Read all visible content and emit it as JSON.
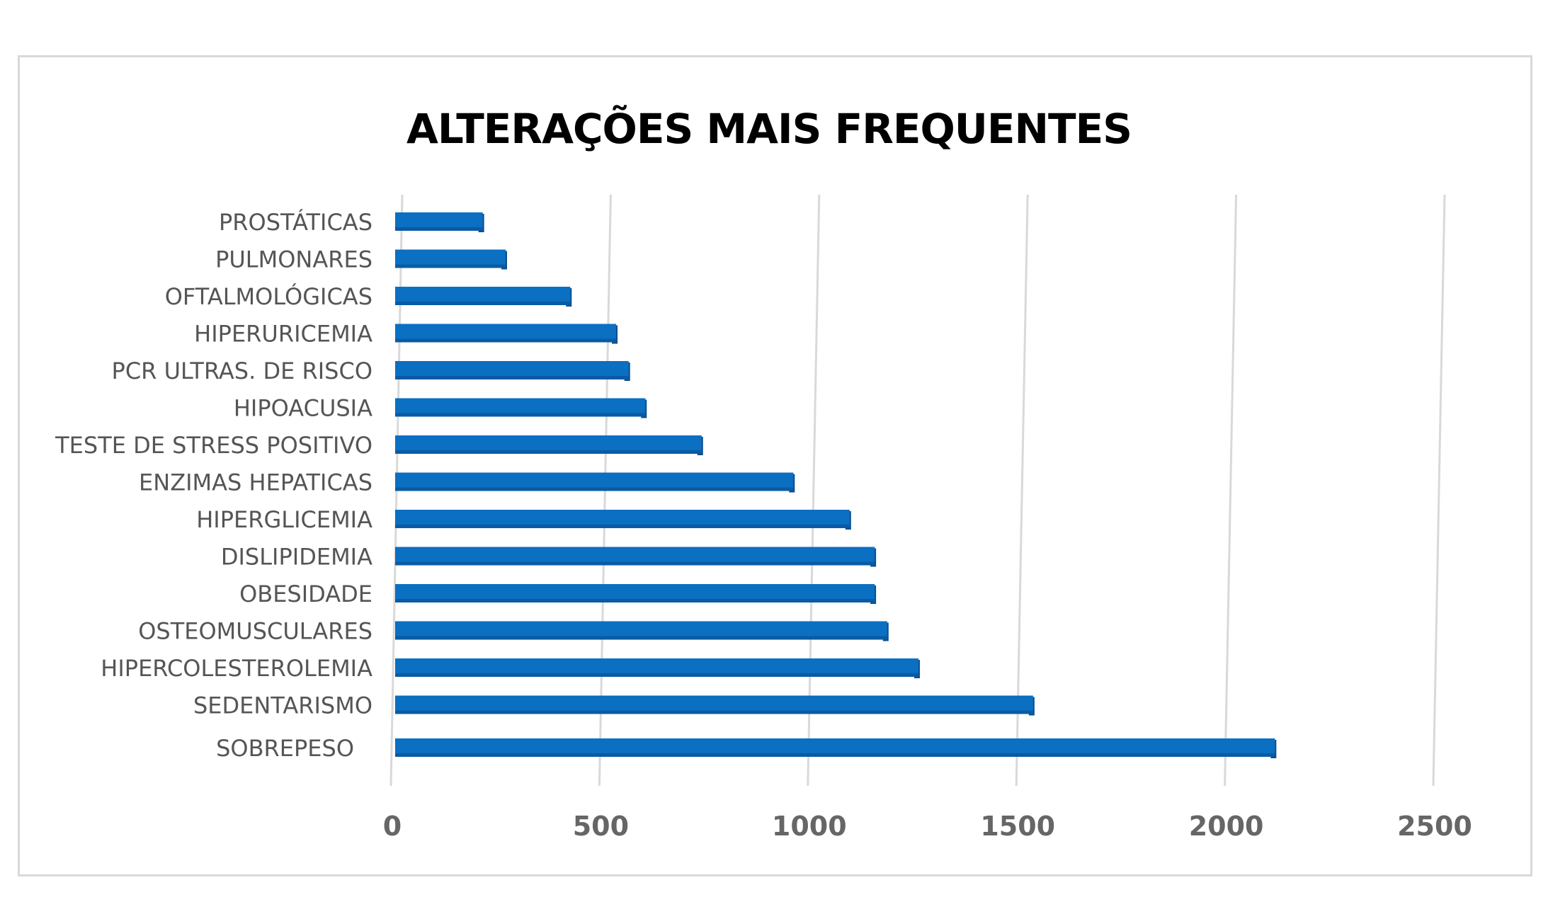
{
  "chart_data": {
    "type": "bar",
    "orientation": "horizontal",
    "title": "ALTERAÇÕES MAIS FREQUENTES",
    "categories": [
      "PROSTÁTICAS",
      "PULMONARES",
      "OFTALMOLÓGICAS",
      "HIPERURICEMIA",
      "PCR ULTRAS. DE RISCO",
      "HIPOACUSIA",
      "TESTE DE STRESS POSITIVO",
      "ENZIMAS HEPATICAS",
      "HIPERGLICEMIA",
      "DISLIPIDEMIA",
      "OBESIDADE",
      "OSTEOMUSCULARES",
      "HIPERCOLESTEROLEMIA",
      "SEDENTARISMO",
      "SOBREPESO"
    ],
    "values": [
      210,
      265,
      420,
      530,
      560,
      600,
      735,
      955,
      1090,
      1150,
      1150,
      1180,
      1255,
      1530,
      2110
    ],
    "xlim": [
      0,
      2500
    ],
    "xticks": [
      "0",
      "500",
      "1000",
      "1500",
      "2000",
      "2500"
    ],
    "xlabel": "",
    "ylabel": "",
    "grid": true,
    "bar_color": "#0B6FC2",
    "bar_edge_color": "#0A4F8E",
    "gridline_color": "#d9d9d9"
  }
}
